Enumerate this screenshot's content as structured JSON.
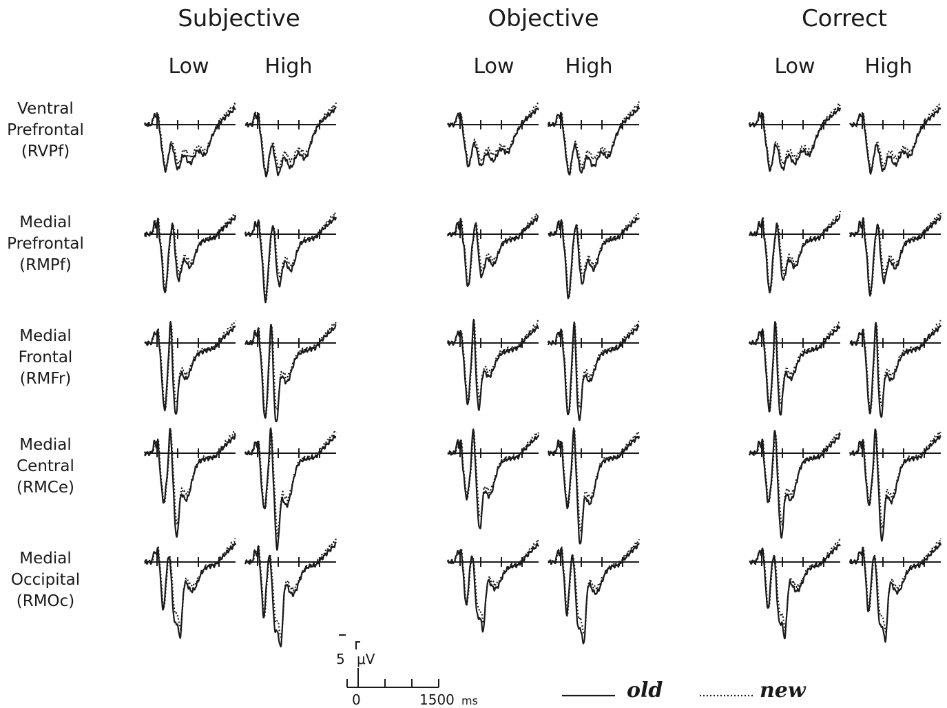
{
  "chart_data": {
    "type": "line",
    "conditions": [
      "Subjective",
      "Objective",
      "Correct"
    ],
    "levels": [
      "Low",
      "High"
    ],
    "regions": [
      {
        "name": [
          "Ventral",
          "Prefrontal",
          "(RVPf)"
        ],
        "profile": "vpf"
      },
      {
        "name": [
          "Medial",
          "Prefrontal",
          "(RMPf)"
        ],
        "profile": "mpf"
      },
      {
        "name": [
          "Medial",
          "Frontal",
          "(RMFr)"
        ],
        "profile": "mfr"
      },
      {
        "name": [
          "Medial",
          "Central",
          "(RMCe)"
        ],
        "profile": "mce"
      },
      {
        "name": [
          "Medial",
          "Occipital",
          "(RMOc)"
        ],
        "profile": "moc"
      }
    ],
    "x_range_ms": [
      -300,
      1900
    ],
    "x_ticks_ms": [
      0,
      500,
      1000,
      1500
    ],
    "y_range_uV": [
      -5,
      22
    ],
    "series": [
      {
        "name": "old",
        "style": "solid"
      },
      {
        "name": "new",
        "style": "dotted"
      }
    ],
    "scale_bar": {
      "amplitude_label": "5",
      "amplitude_unit": "μV",
      "time_start_label": "0",
      "time_end_label": "1500",
      "time_unit": "ms"
    },
    "legend": {
      "old_label": "old",
      "new_label": "new",
      "placement": "bottom-right"
    }
  }
}
